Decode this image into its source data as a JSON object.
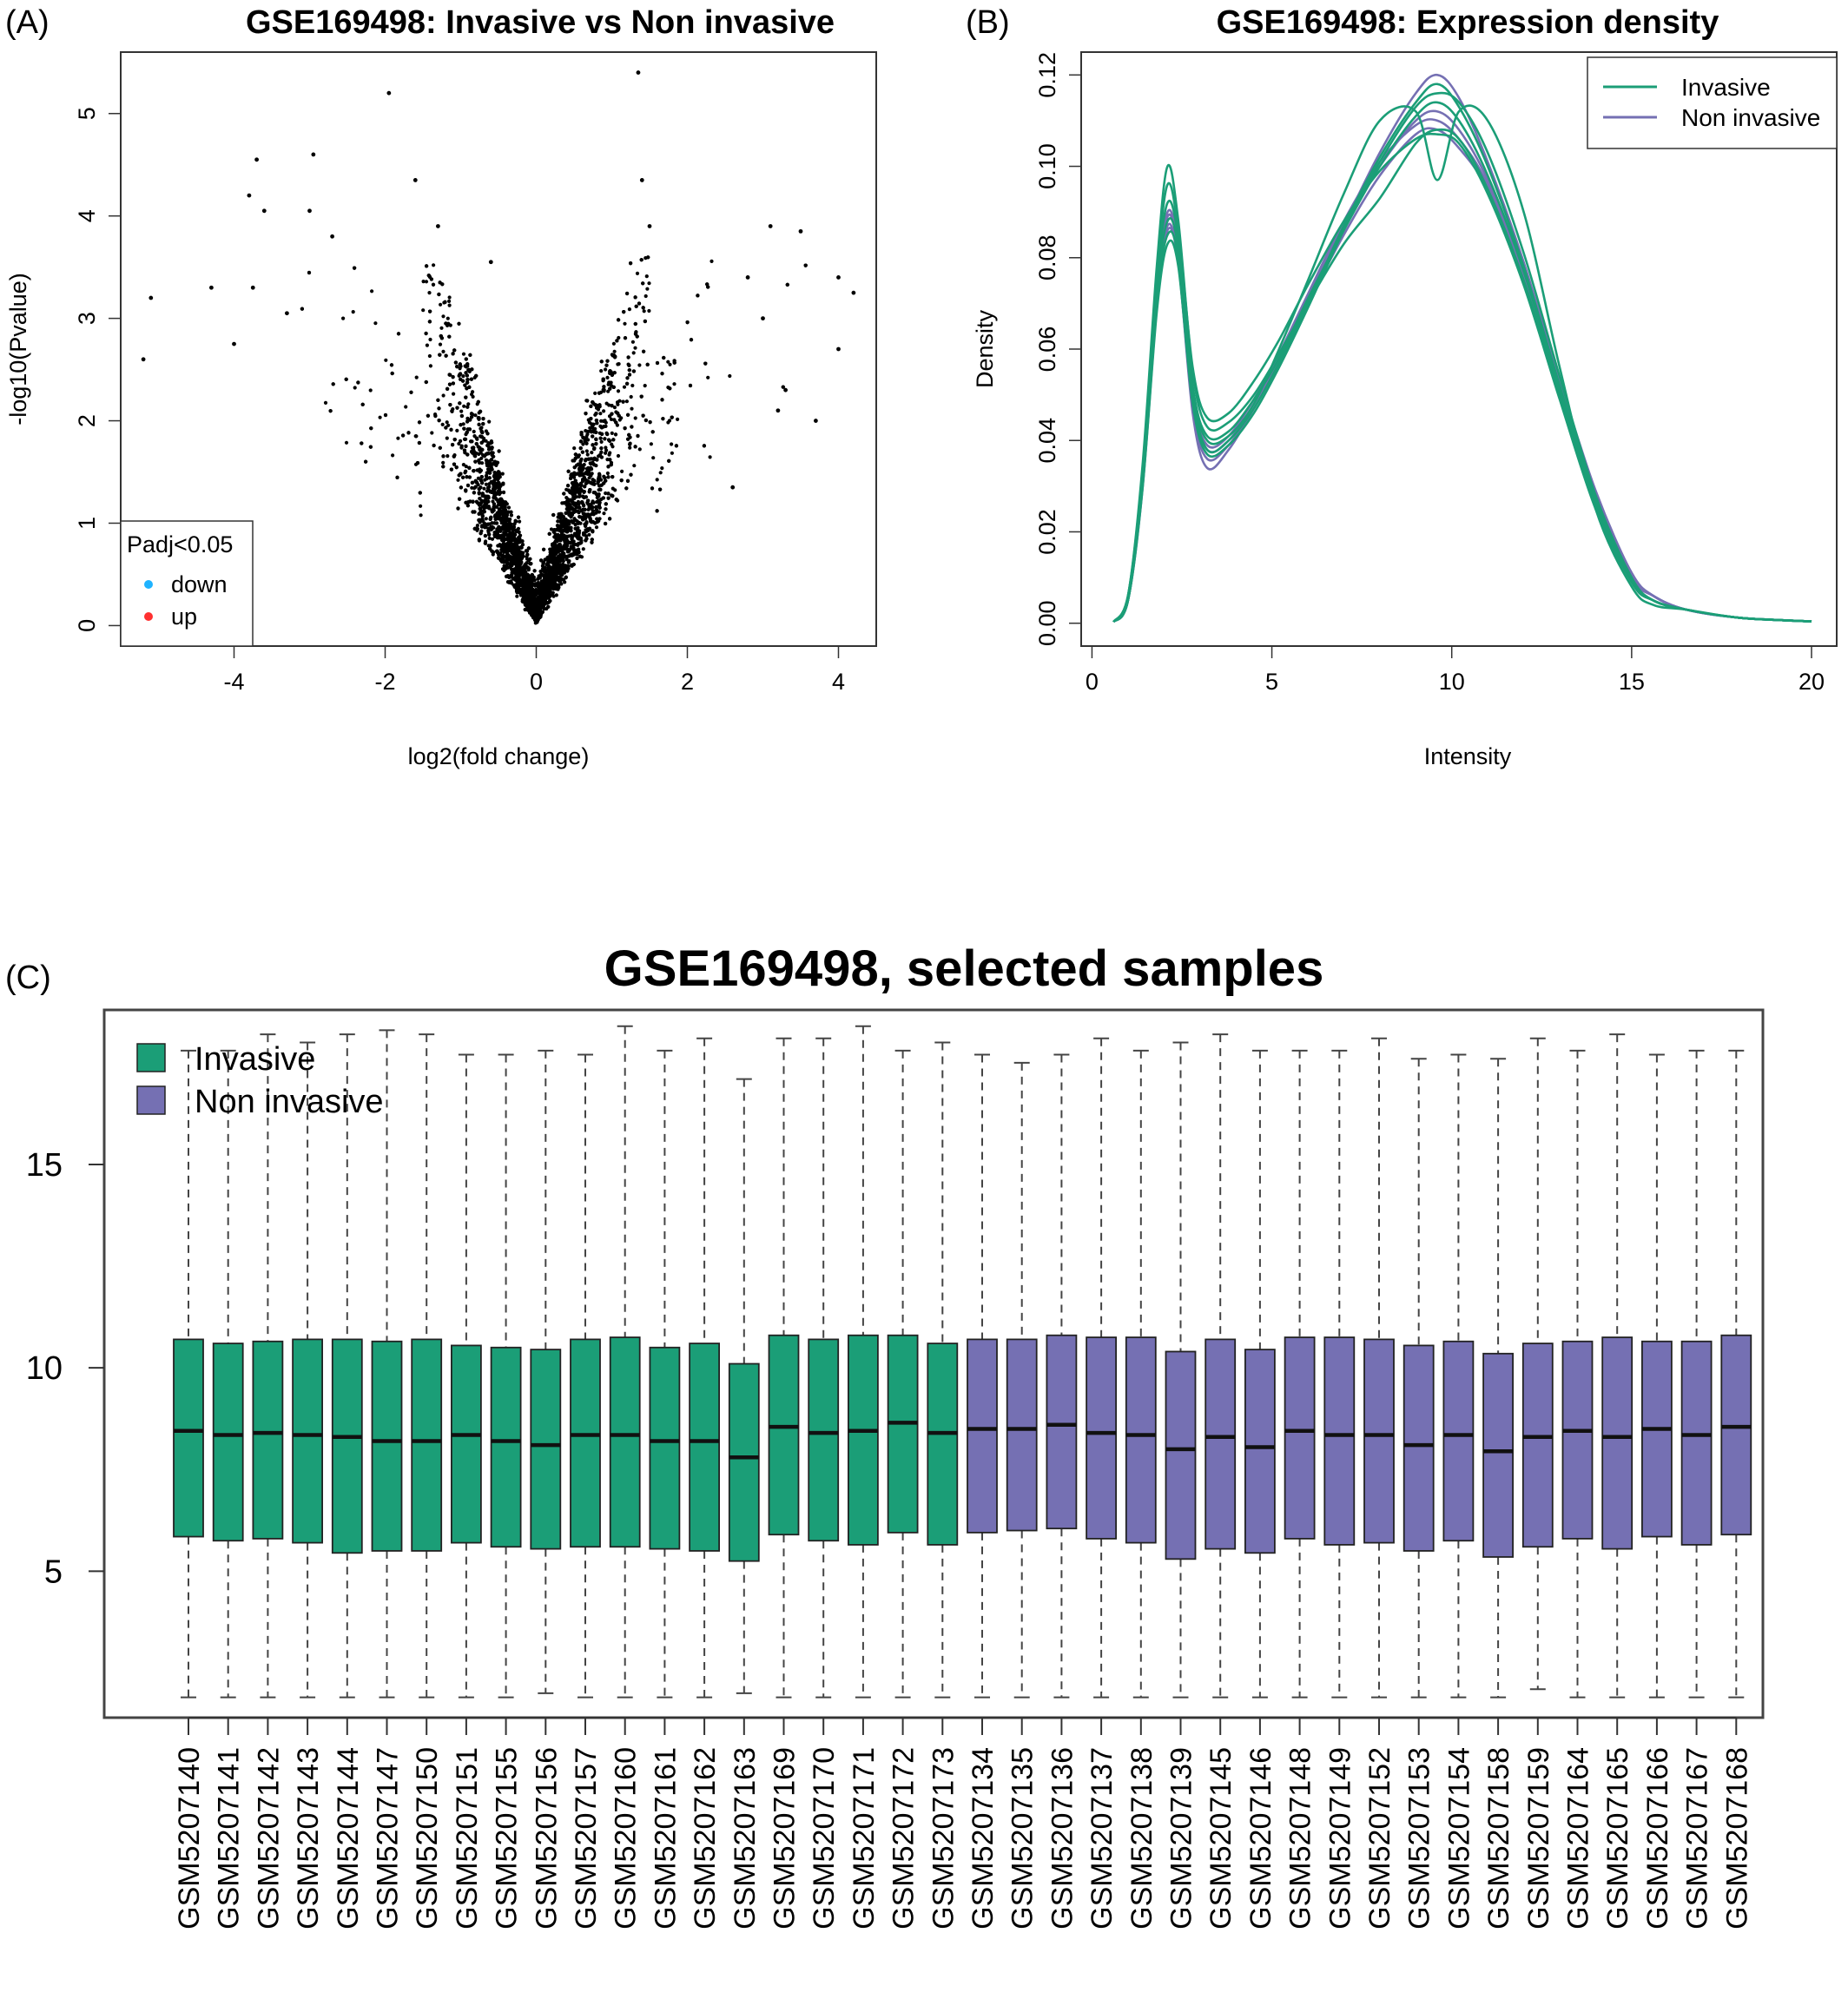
{
  "panels": {
    "A": "(A)",
    "B": "(B)",
    "C": "(C)"
  },
  "colors": {
    "invasive": "#1b9e77",
    "non_invasive": "#7570b3",
    "down": "#1fb3ff",
    "up": "#ff3030",
    "points": "#000000"
  },
  "chart_data": [
    {
      "type": "scatter",
      "title": "GSE169498: Invasive vs Non invasive",
      "xlabel": "log2(fold change)",
      "ylabel": "-log10(Pvalue)",
      "xlim": [
        -5.5,
        4.5
      ],
      "ylim": [
        -0.2,
        5.6
      ],
      "xticks": [
        -4,
        -2,
        0,
        2,
        4
      ],
      "yticks": [
        0,
        1,
        2,
        3,
        4,
        5
      ],
      "legend": {
        "title": "Padj<0.05",
        "position": "bottom-left",
        "items": [
          {
            "label": "down",
            "color": "#1fb3ff"
          },
          {
            "label": "up",
            "color": "#ff3030"
          }
        ]
      },
      "highlight_points": [
        [
          -5.2,
          2.6
        ],
        [
          -5.1,
          3.2
        ],
        [
          -4.3,
          3.3
        ],
        [
          -4.0,
          2.75
        ],
        [
          -3.8,
          4.2
        ],
        [
          -3.7,
          4.55
        ],
        [
          -3.6,
          4.05
        ],
        [
          -3.75,
          3.3
        ],
        [
          -3.3,
          3.05
        ],
        [
          -2.95,
          4.6
        ],
        [
          -3.0,
          4.05
        ],
        [
          -2.7,
          3.8
        ],
        [
          -1.95,
          5.2
        ],
        [
          -1.6,
          4.35
        ],
        [
          -1.3,
          3.9
        ],
        [
          -0.6,
          3.55
        ],
        [
          1.35,
          5.4
        ],
        [
          1.4,
          4.35
        ],
        [
          1.5,
          3.9
        ],
        [
          3.1,
          3.9
        ],
        [
          3.5,
          3.85
        ],
        [
          2.8,
          3.4
        ],
        [
          4.0,
          3.4
        ],
        [
          4.2,
          3.25
        ],
        [
          4.0,
          2.7
        ],
        [
          3.0,
          3.0
        ],
        [
          3.3,
          2.3
        ],
        [
          3.2,
          2.1
        ],
        [
          2.6,
          1.35
        ],
        [
          3.7,
          2.0
        ]
      ],
      "bulk_points": {
        "count": 6000,
        "description_only": false
      }
    },
    {
      "type": "line",
      "title": "GSE169498: Expression density",
      "xlabel": "Intensity",
      "ylabel": "Density",
      "xlim": [
        -0.3,
        20.7
      ],
      "ylim": [
        -0.005,
        0.125
      ],
      "xticks": [
        0,
        5,
        10,
        15,
        20
      ],
      "yticks": [
        0.0,
        0.02,
        0.04,
        0.06,
        0.08,
        0.1,
        0.12
      ],
      "ytick_labels": [
        "0.00",
        "0.02",
        "0.04",
        "0.06",
        "0.08",
        "0.10",
        "0.12"
      ],
      "legend": {
        "position": "top-right",
        "items": [
          {
            "label": "Invasive",
            "color": "#1b9e77"
          },
          {
            "label": "Non invasive",
            "color": "#7570b3"
          }
        ]
      },
      "x": [
        0.6,
        1.0,
        1.4,
        1.8,
        2.1,
        2.4,
        2.8,
        3.2,
        3.8,
        4.5,
        5.2,
        6.0,
        7.0,
        8.0,
        9.0,
        9.6,
        10.2,
        11.0,
        12.0,
        13.0,
        14.0,
        15.0,
        15.6,
        16.5,
        18.0,
        20.0
      ],
      "series": [
        {
          "group": "Invasive",
          "values": [
            0.0003,
            0.006,
            0.034,
            0.078,
            0.1,
            0.088,
            0.055,
            0.043,
            0.044,
            0.05,
            0.059,
            0.07,
            0.083,
            0.093,
            0.105,
            0.108,
            0.106,
            0.095,
            0.075,
            0.05,
            0.026,
            0.009,
            0.005,
            0.003,
            0.0012,
            0.0004
          ]
        },
        {
          "group": "Invasive",
          "values": [
            0.0003,
            0.006,
            0.032,
            0.074,
            0.092,
            0.084,
            0.052,
            0.041,
            0.042,
            0.049,
            0.058,
            0.071,
            0.086,
            0.1,
            0.111,
            0.114,
            0.11,
            0.098,
            0.077,
            0.051,
            0.026,
            0.009,
            0.005,
            0.003,
            0.0012,
            0.0004
          ]
        },
        {
          "group": "Invasive",
          "values": [
            0.0003,
            0.005,
            0.03,
            0.07,
            0.085,
            0.08,
            0.05,
            0.038,
            0.04,
            0.047,
            0.057,
            0.07,
            0.087,
            0.102,
            0.114,
            0.118,
            0.113,
            0.1,
            0.078,
            0.052,
            0.027,
            0.009,
            0.005,
            0.003,
            0.0012,
            0.0004
          ]
        },
        {
          "group": "Invasive",
          "values": [
            0.0003,
            0.005,
            0.031,
            0.072,
            0.088,
            0.082,
            0.051,
            0.04,
            0.041,
            0.048,
            0.06,
            0.075,
            0.094,
            0.11,
            0.112,
            0.097,
            0.112,
            0.11,
            0.09,
            0.056,
            0.025,
            0.008,
            0.004,
            0.003,
            0.0012,
            0.0004
          ]
        },
        {
          "group": "Invasive",
          "values": [
            0.0003,
            0.006,
            0.033,
            0.076,
            0.096,
            0.086,
            0.056,
            0.045,
            0.046,
            0.053,
            0.062,
            0.074,
            0.088,
            0.099,
            0.106,
            0.107,
            0.105,
            0.094,
            0.074,
            0.049,
            0.025,
            0.009,
            0.005,
            0.003,
            0.0012,
            0.0004
          ]
        },
        {
          "group": "Invasive",
          "values": [
            0.0003,
            0.005,
            0.029,
            0.068,
            0.083,
            0.078,
            0.048,
            0.037,
            0.039,
            0.046,
            0.056,
            0.069,
            0.086,
            0.101,
            0.113,
            0.116,
            0.114,
            0.103,
            0.081,
            0.054,
            0.028,
            0.01,
            0.005,
            0.003,
            0.0012,
            0.0004
          ]
        },
        {
          "group": "Non invasive",
          "values": [
            0.0003,
            0.005,
            0.029,
            0.069,
            0.086,
            0.079,
            0.047,
            0.036,
            0.039,
            0.047,
            0.057,
            0.07,
            0.087,
            0.103,
            0.116,
            0.12,
            0.115,
            0.101,
            0.079,
            0.053,
            0.028,
            0.011,
            0.006,
            0.003,
            0.0012,
            0.0004
          ]
        },
        {
          "group": "Non invasive",
          "values": [
            0.0003,
            0.005,
            0.03,
            0.071,
            0.089,
            0.081,
            0.049,
            0.038,
            0.04,
            0.048,
            0.058,
            0.071,
            0.087,
            0.1,
            0.11,
            0.112,
            0.108,
            0.097,
            0.077,
            0.052,
            0.027,
            0.01,
            0.006,
            0.003,
            0.0012,
            0.0004
          ]
        },
        {
          "group": "Non invasive",
          "values": [
            0.0003,
            0.005,
            0.03,
            0.07,
            0.087,
            0.079,
            0.046,
            0.034,
            0.038,
            0.047,
            0.057,
            0.07,
            0.085,
            0.098,
            0.107,
            0.108,
            0.104,
            0.095,
            0.077,
            0.053,
            0.029,
            0.011,
            0.006,
            0.003,
            0.0012,
            0.0004
          ]
        },
        {
          "group": "Non invasive",
          "values": [
            0.0003,
            0.005,
            0.031,
            0.072,
            0.09,
            0.082,
            0.05,
            0.039,
            0.041,
            0.049,
            0.059,
            0.072,
            0.088,
            0.101,
            0.109,
            0.11,
            0.106,
            0.096,
            0.076,
            0.051,
            0.027,
            0.01,
            0.006,
            0.003,
            0.0012,
            0.0004
          ]
        }
      ]
    },
    {
      "type": "box",
      "title": "GSE169498, selected samples",
      "ylim": [
        1.4,
        18.8
      ],
      "yticks": [
        5,
        10,
        15
      ],
      "legend": {
        "position": "top-left",
        "items": [
          {
            "label": "Invasive",
            "color": "#1b9e77"
          },
          {
            "label": "Non invasive",
            "color": "#7570b3"
          }
        ]
      },
      "samples": [
        {
          "name": "GSM5207140",
          "group": "Invasive",
          "min": 1.9,
          "q1": 5.85,
          "median": 8.45,
          "q3": 10.7,
          "max": 17.8
        },
        {
          "name": "GSM5207141",
          "group": "Invasive",
          "min": 1.9,
          "q1": 5.75,
          "median": 8.35,
          "q3": 10.6,
          "max": 17.8
        },
        {
          "name": "GSM5207142",
          "group": "Invasive",
          "min": 1.9,
          "q1": 5.8,
          "median": 8.4,
          "q3": 10.65,
          "max": 18.2
        },
        {
          "name": "GSM5207143",
          "group": "Invasive",
          "min": 1.9,
          "q1": 5.7,
          "median": 8.35,
          "q3": 10.7,
          "max": 18.0
        },
        {
          "name": "GSM5207144",
          "group": "Invasive",
          "min": 1.9,
          "q1": 5.45,
          "median": 8.3,
          "q3": 10.7,
          "max": 18.2
        },
        {
          "name": "GSM5207147",
          "group": "Invasive",
          "min": 1.9,
          "q1": 5.5,
          "median": 8.2,
          "q3": 10.65,
          "max": 18.3
        },
        {
          "name": "GSM5207150",
          "group": "Invasive",
          "min": 1.9,
          "q1": 5.5,
          "median": 8.2,
          "q3": 10.7,
          "max": 18.2
        },
        {
          "name": "GSM5207151",
          "group": "Invasive",
          "min": 1.9,
          "q1": 5.7,
          "median": 8.35,
          "q3": 10.55,
          "max": 17.7
        },
        {
          "name": "GSM5207155",
          "group": "Invasive",
          "min": 1.9,
          "q1": 5.6,
          "median": 8.2,
          "q3": 10.5,
          "max": 17.7
        },
        {
          "name": "GSM5207156",
          "group": "Invasive",
          "min": 2.0,
          "q1": 5.55,
          "median": 8.1,
          "q3": 10.45,
          "max": 17.8
        },
        {
          "name": "GSM5207157",
          "group": "Invasive",
          "min": 1.9,
          "q1": 5.6,
          "median": 8.35,
          "q3": 10.7,
          "max": 17.7
        },
        {
          "name": "GSM5207160",
          "group": "Invasive",
          "min": 1.9,
          "q1": 5.6,
          "median": 8.35,
          "q3": 10.75,
          "max": 18.4
        },
        {
          "name": "GSM5207161",
          "group": "Invasive",
          "min": 1.9,
          "q1": 5.55,
          "median": 8.2,
          "q3": 10.5,
          "max": 17.8
        },
        {
          "name": "GSM5207162",
          "group": "Invasive",
          "min": 1.9,
          "q1": 5.5,
          "median": 8.2,
          "q3": 10.6,
          "max": 18.1
        },
        {
          "name": "GSM5207163",
          "group": "Invasive",
          "min": 2.0,
          "q1": 5.25,
          "median": 7.8,
          "q3": 10.1,
          "max": 17.1
        },
        {
          "name": "GSM5207169",
          "group": "Invasive",
          "min": 1.9,
          "q1": 5.9,
          "median": 8.55,
          "q3": 10.8,
          "max": 18.1
        },
        {
          "name": "GSM5207170",
          "group": "Invasive",
          "min": 1.9,
          "q1": 5.75,
          "median": 8.4,
          "q3": 10.7,
          "max": 18.1
        },
        {
          "name": "GSM5207171",
          "group": "Invasive",
          "min": 1.9,
          "q1": 5.65,
          "median": 8.45,
          "q3": 10.8,
          "max": 18.4
        },
        {
          "name": "GSM5207172",
          "group": "Invasive",
          "min": 1.9,
          "q1": 5.95,
          "median": 8.65,
          "q3": 10.8,
          "max": 17.8
        },
        {
          "name": "GSM5207173",
          "group": "Invasive",
          "min": 1.9,
          "q1": 5.65,
          "median": 8.4,
          "q3": 10.6,
          "max": 18.0
        },
        {
          "name": "GSM5207134",
          "group": "Non invasive",
          "min": 1.9,
          "q1": 5.95,
          "median": 8.5,
          "q3": 10.7,
          "max": 17.7
        },
        {
          "name": "GSM5207135",
          "group": "Non invasive",
          "min": 1.9,
          "q1": 6.0,
          "median": 8.5,
          "q3": 10.7,
          "max": 17.5
        },
        {
          "name": "GSM5207136",
          "group": "Non invasive",
          "min": 1.9,
          "q1": 6.05,
          "median": 8.6,
          "q3": 10.8,
          "max": 17.7
        },
        {
          "name": "GSM5207137",
          "group": "Non invasive",
          "min": 1.9,
          "q1": 5.8,
          "median": 8.4,
          "q3": 10.75,
          "max": 18.1
        },
        {
          "name": "GSM5207138",
          "group": "Non invasive",
          "min": 1.9,
          "q1": 5.7,
          "median": 8.35,
          "q3": 10.75,
          "max": 17.8
        },
        {
          "name": "GSM5207139",
          "group": "Non invasive",
          "min": 1.9,
          "q1": 5.3,
          "median": 8.0,
          "q3": 10.4,
          "max": 18.0
        },
        {
          "name": "GSM5207145",
          "group": "Non invasive",
          "min": 1.9,
          "q1": 5.55,
          "median": 8.3,
          "q3": 10.7,
          "max": 18.2
        },
        {
          "name": "GSM5207146",
          "group": "Non invasive",
          "min": 1.9,
          "q1": 5.45,
          "median": 8.05,
          "q3": 10.45,
          "max": 17.8
        },
        {
          "name": "GSM5207148",
          "group": "Non invasive",
          "min": 1.9,
          "q1": 5.8,
          "median": 8.45,
          "q3": 10.75,
          "max": 17.8
        },
        {
          "name": "GSM5207149",
          "group": "Non invasive",
          "min": 1.9,
          "q1": 5.65,
          "median": 8.35,
          "q3": 10.75,
          "max": 17.8
        },
        {
          "name": "GSM5207152",
          "group": "Non invasive",
          "min": 1.9,
          "q1": 5.7,
          "median": 8.35,
          "q3": 10.7,
          "max": 18.1
        },
        {
          "name": "GSM5207153",
          "group": "Non invasive",
          "min": 1.9,
          "q1": 5.5,
          "median": 8.1,
          "q3": 10.55,
          "max": 17.6
        },
        {
          "name": "GSM5207154",
          "group": "Non invasive",
          "min": 1.9,
          "q1": 5.75,
          "median": 8.35,
          "q3": 10.65,
          "max": 17.7
        },
        {
          "name": "GSM5207158",
          "group": "Non invasive",
          "min": 1.9,
          "q1": 5.35,
          "median": 7.95,
          "q3": 10.35,
          "max": 17.6
        },
        {
          "name": "GSM5207159",
          "group": "Non invasive",
          "min": 2.1,
          "q1": 5.6,
          "median": 8.3,
          "q3": 10.6,
          "max": 18.1
        },
        {
          "name": "GSM5207164",
          "group": "Non invasive",
          "min": 1.9,
          "q1": 5.8,
          "median": 8.45,
          "q3": 10.65,
          "max": 17.8
        },
        {
          "name": "GSM5207165",
          "group": "Non invasive",
          "min": 1.9,
          "q1": 5.55,
          "median": 8.3,
          "q3": 10.75,
          "max": 18.2
        },
        {
          "name": "GSM5207166",
          "group": "Non invasive",
          "min": 1.9,
          "q1": 5.85,
          "median": 8.5,
          "q3": 10.65,
          "max": 17.7
        },
        {
          "name": "GSM5207167",
          "group": "Non invasive",
          "min": 1.9,
          "q1": 5.65,
          "median": 8.35,
          "q3": 10.65,
          "max": 17.8
        },
        {
          "name": "GSM5207168",
          "group": "Non invasive",
          "min": 1.9,
          "q1": 5.9,
          "median": 8.55,
          "q3": 10.8,
          "max": 17.8
        }
      ]
    }
  ]
}
